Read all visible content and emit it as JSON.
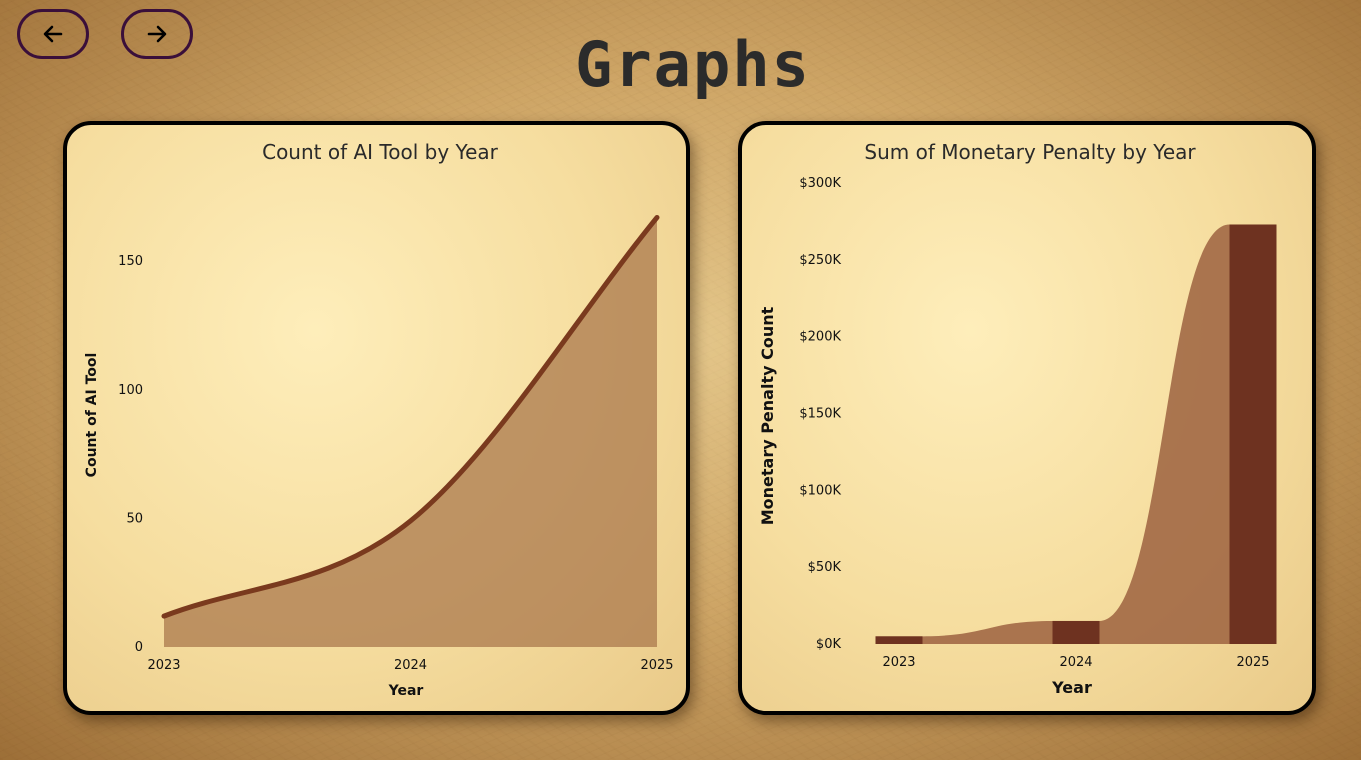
{
  "page": {
    "title": "Graphs"
  },
  "nav": {
    "back_icon": "arrow-left-icon",
    "next_icon": "arrow-right-icon"
  },
  "colors": {
    "line": "#7a3a1e",
    "area": "#a8744a",
    "bar": "#6e3220",
    "band": "#9c6240",
    "nav_border": "#3a0f3a"
  },
  "chart_data": [
    {
      "type": "area",
      "title": "Count of AI Tool by Year",
      "xlabel": "Year",
      "ylabel": "Count of AI Tool",
      "x": [
        "2023",
        "2024",
        "2025"
      ],
      "series": [
        {
          "values": [
            12,
            49,
            167
          ]
        }
      ],
      "yticks": [
        "0",
        "50",
        "100",
        "150"
      ],
      "ylim": [
        0,
        180
      ],
      "grid": false,
      "legend": "none"
    },
    {
      "type": "bar",
      "title": "Sum of Monetary Penalty by Year",
      "xlabel": "Year",
      "ylabel": "Monetary Penalty Count",
      "categories": [
        "2023",
        "2024",
        "2025"
      ],
      "values": [
        5000,
        15000,
        273000
      ],
      "yticks": [
        "$0K",
        "$50K",
        "$100K",
        "$150K",
        "$200K",
        "$250K",
        "$300K"
      ],
      "ylim": [
        0,
        300000
      ],
      "grid": false,
      "legend": "none"
    }
  ]
}
